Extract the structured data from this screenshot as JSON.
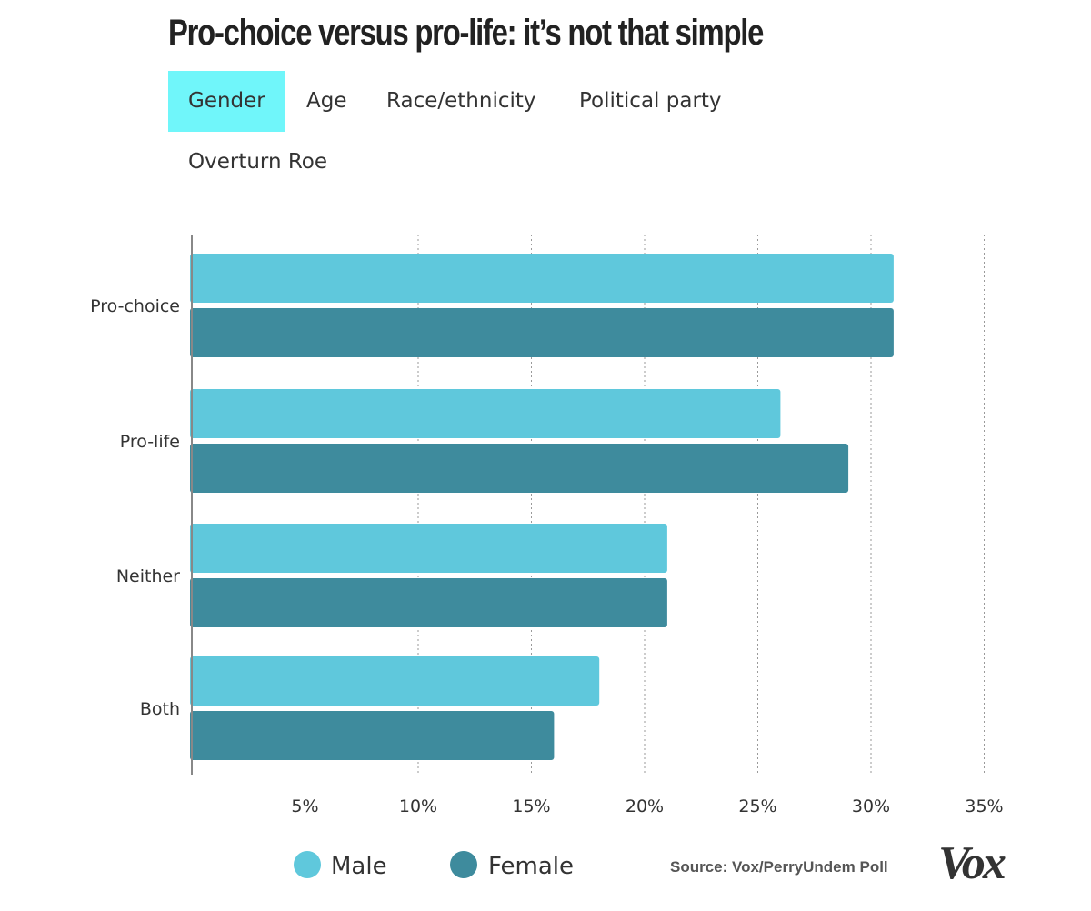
{
  "title": "Pro-choice versus pro-life: it’s not that simple",
  "tabs": [
    {
      "label": "Gender",
      "active": true
    },
    {
      "label": "Age",
      "active": false
    },
    {
      "label": "Race/ethnicity",
      "active": false
    },
    {
      "label": "Political party",
      "active": false
    },
    {
      "label": "Overturn Roe",
      "active": false
    }
  ],
  "colors": {
    "male": "#5fc8dc",
    "female": "#3e8b9d",
    "active_tab": "#70f6fa"
  },
  "chart_data": {
    "type": "bar",
    "orientation": "horizontal",
    "categories": [
      "Pro-choice",
      "Pro-life",
      "Neither",
      "Both"
    ],
    "series": [
      {
        "name": "Male",
        "values": [
          31,
          26,
          21,
          18
        ]
      },
      {
        "name": "Female",
        "values": [
          31,
          29,
          21,
          16
        ]
      }
    ],
    "xlim": [
      0,
      35
    ],
    "xticks": [
      "5%",
      "10%",
      "15%",
      "20%",
      "25%",
      "30%",
      "35%"
    ],
    "grid": true,
    "legend_placement": "bottom"
  },
  "legend": {
    "male_label": "Male",
    "female_label": "Female"
  },
  "source": "Source: Vox/PerryUndem Poll",
  "logo": "Vox"
}
